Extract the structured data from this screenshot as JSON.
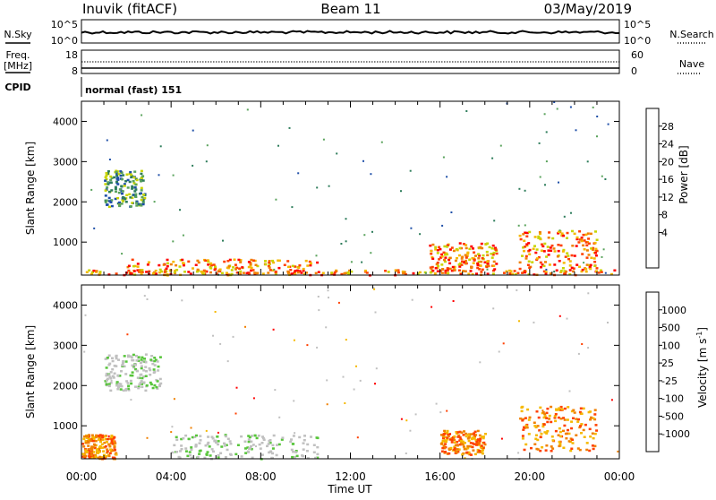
{
  "header": {
    "station": "Inuvik (fitACF)",
    "beam": "Beam 11",
    "date": "03/May/2019"
  },
  "noise_panel": {
    "left_label": "N.Sky",
    "right_label": "N.Search",
    "left_ticks": [
      "10^5",
      "10^0"
    ],
    "right_ticks": [
      "10^5",
      "10^0"
    ]
  },
  "freq_panel": {
    "left_label_top": "Freq.",
    "left_label_bottom": "[MHz]",
    "right_label": "Nave",
    "left_ticks": [
      "18",
      "8"
    ],
    "right_ticks": [
      "60",
      "0"
    ]
  },
  "cpid": {
    "label": "CPID",
    "value": "normal (fast) 151"
  },
  "chart_data": [
    {
      "type": "heatmap",
      "panel": "power",
      "ylabel": "Slant Range [km]",
      "xlabel": "",
      "ylim": [
        180,
        4500
      ],
      "y_ticks": [
        "1000",
        "2000",
        "3000",
        "4000"
      ],
      "x_ticks": [
        "00:00",
        "04:00",
        "08:00",
        "12:00",
        "16:00",
        "20:00",
        "00:00"
      ],
      "colorbar": {
        "label": "Power [dB]",
        "ticks": [
          "28",
          "24",
          "20",
          "16",
          "12",
          "8",
          "4"
        ],
        "colors": [
          "#0000ff",
          "#1f4fa8",
          "#2e7d5b",
          "#5aa35c",
          "#c8d400",
          "#f5b800",
          "#f08000",
          "#ff4000",
          "#ff0000"
        ]
      },
      "features": [
        {
          "t": [
            0.0,
            24.0
          ],
          "range": [
            200,
            330
          ],
          "level": "high"
        },
        {
          "t": [
            2.0,
            10.5
          ],
          "range": [
            230,
            600
          ],
          "level": "high"
        },
        {
          "t": [
            1.0,
            2.8
          ],
          "range": [
            1900,
            2800
          ],
          "level": "medium"
        },
        {
          "t": [
            15.5,
            18.5
          ],
          "range": [
            300,
            1000
          ],
          "level": "high"
        },
        {
          "t": [
            19.5,
            23.0
          ],
          "range": [
            300,
            1300
          ],
          "level": "high"
        }
      ]
    },
    {
      "type": "heatmap",
      "panel": "velocity",
      "ylabel": "Slant Range [km]",
      "xlabel": "Time UT",
      "ylim": [
        180,
        4500
      ],
      "y_ticks": [
        "1000",
        "2000",
        "3000",
        "4000"
      ],
      "x_ticks": [
        "00:00",
        "04:00",
        "08:00",
        "12:00",
        "16:00",
        "20:00",
        "00:00"
      ],
      "colorbar": {
        "label": "Velocity [m s-1]",
        "label_main": "Velocity [m s",
        "label_sup": "-1",
        "label_end": "]",
        "ticks": [
          "1000",
          "500",
          "100",
          "25",
          "-25",
          "-100",
          "-500",
          "-1000"
        ],
        "colors": [
          "#2340c8",
          "#3a6fb0",
          "#2e8b57",
          "#57c53a",
          "#c0c0c0",
          "#f5b800",
          "#f08000",
          "#ff4000",
          "#ff0000"
        ]
      },
      "features": [
        {
          "t": [
            0.0,
            1.5
          ],
          "range": [
            200,
            800
          ],
          "level": "negative"
        },
        {
          "t": [
            4.0,
            10.5
          ],
          "range": [
            200,
            800
          ],
          "level": "near-zero"
        },
        {
          "t": [
            1.0,
            3.5
          ],
          "range": [
            1900,
            2800
          ],
          "level": "near-zero"
        },
        {
          "t": [
            16.0,
            18.0
          ],
          "range": [
            300,
            900
          ],
          "level": "negative"
        },
        {
          "t": [
            19.5,
            23.0
          ],
          "range": [
            400,
            1500
          ],
          "level": "negative"
        }
      ]
    }
  ]
}
